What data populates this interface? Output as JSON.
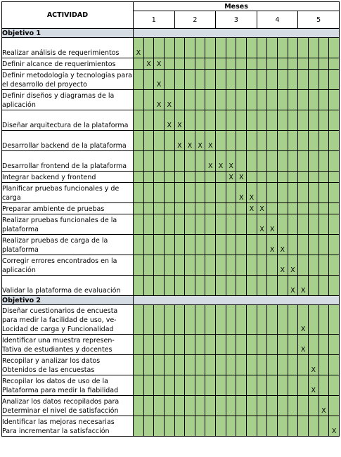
{
  "header": {
    "activity_label": "ACTIVIDAD",
    "months_label": "Meses",
    "months": [
      "1",
      "2",
      "3",
      "4",
      "5"
    ]
  },
  "sections": [
    {
      "title": "Objetivo 1",
      "rows": [
        {
          "lines": [
            "Realizar análisis de requerimientos"
          ],
          "weeks": [
            1
          ],
          "mark": "X"
        },
        {
          "lines": [
            "Definir alcance de requerimientos"
          ],
          "weeks": [
            2,
            3
          ],
          "mark": "X"
        },
        {
          "lines": [
            "Definir metodología y tecnologías para",
            "el desarrollo del proyecto"
          ],
          "weeks": [
            3
          ],
          "mark": "X"
        },
        {
          "lines": [
            "Definir diseños y diagramas de la",
            "aplicación"
          ],
          "weeks": [
            3,
            4
          ],
          "mark": "X"
        },
        {
          "lines": [
            "Diseñar arquitectura de la plataforma"
          ],
          "weeks": [
            4,
            5
          ],
          "mark": "X"
        },
        {
          "lines": [
            "Desarrollar backend de la plataforma"
          ],
          "weeks": [
            5,
            6,
            7,
            8
          ],
          "mark": "X"
        },
        {
          "lines": [
            "Desarrollar frontend de la plataforma"
          ],
          "weeks": [
            8,
            9,
            10
          ],
          "mark": "X"
        },
        {
          "lines": [
            "Integrar backend y frontend"
          ],
          "weeks": [
            10,
            11
          ],
          "mark": "X"
        },
        {
          "lines": [
            "Planificar pruebas funcionales y de",
            "carga"
          ],
          "weeks": [
            11,
            12
          ],
          "mark": "X"
        },
        {
          "lines": [
            "Preparar ambiente de pruebas"
          ],
          "weeks": [
            12,
            13
          ],
          "mark": "X"
        },
        {
          "lines": [
            "Realizar pruebas funcionales de la",
            "plataforma"
          ],
          "weeks": [
            13,
            14
          ],
          "mark": "X"
        },
        {
          "lines": [
            "Realizar pruebas de carga de la",
            "plataforma"
          ],
          "weeks": [
            14,
            15
          ],
          "mark": "X"
        },
        {
          "lines": [
            "Corregir errores encontrados en la",
            "aplicación"
          ],
          "weeks": [
            15,
            16
          ],
          "mark": "X"
        },
        {
          "lines": [
            "Validar la plataforma de evaluación"
          ],
          "weeks": [
            16,
            17
          ],
          "mark": "X"
        }
      ]
    },
    {
      "title": "Objetivo 2",
      "rows": [
        {
          "lines": [
            "Diseñar cuestionarios de encuesta",
            "para medir la facilidad de uso, ve-",
            "Locidad de carga y Funcionalidad"
          ],
          "weeks": [
            17
          ],
          "mark": "X"
        },
        {
          "lines": [
            "Identificar una muestra represen-",
            "Tativa de estudiantes y docentes"
          ],
          "weeks": [
            17
          ],
          "mark": "X"
        },
        {
          "lines": [
            "Recopilar y analizar los datos",
            "Obtenidos de las encuestas"
          ],
          "weeks": [
            18
          ],
          "mark": "X"
        },
        {
          "lines": [
            "Recopilar los datos de uso de la",
            "Plataforma para medir la fiabilidad"
          ],
          "weeks": [
            18
          ],
          "mark": "X"
        },
        {
          "lines": [
            "Analizar los datos recopilados para",
            "Determinar el nivel de satisfacción"
          ],
          "weeks": [
            19
          ],
          "mark": "X"
        },
        {
          "lines": [
            "Identificar las mejoras necesarias",
            "Para incrementar la satisfacción"
          ],
          "weeks": [
            20
          ],
          "mark": "X"
        }
      ]
    }
  ]
}
